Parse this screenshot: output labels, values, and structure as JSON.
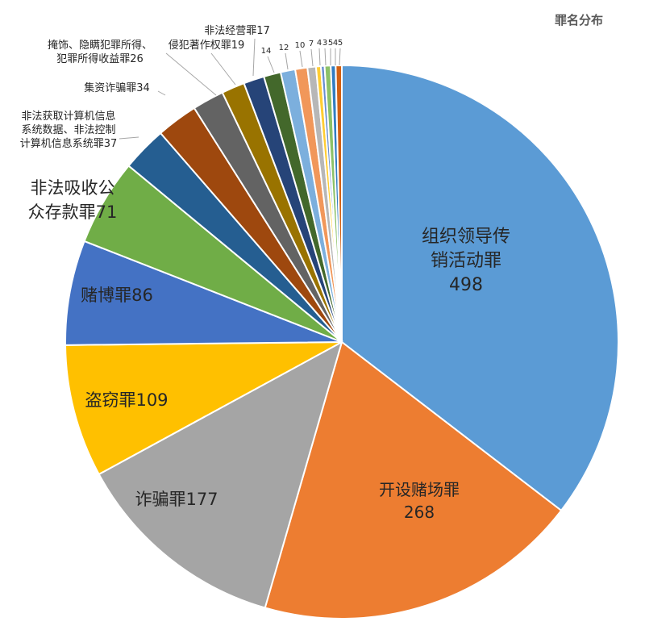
{
  "chart_data": {
    "type": "pie",
    "title": "罪名分布",
    "slices": [
      {
        "name": "组织领导传销活动罪",
        "value": 498,
        "color": "#5B9BD5",
        "label_lines": [
          "组织领导传",
          "销活动罪",
          "498"
        ]
      },
      {
        "name": "开设赌场罪",
        "value": 268,
        "color": "#ED7D31",
        "label_lines": [
          "开设赌场罪",
          "268"
        ]
      },
      {
        "name": "诈骗罪",
        "value": 177,
        "color": "#A5A5A5",
        "label_lines": [
          "诈骗罪177"
        ]
      },
      {
        "name": "盗窃罪",
        "value": 109,
        "color": "#FFC000",
        "label_lines": [
          "盗窃罪109"
        ]
      },
      {
        "name": "赌博罪",
        "value": 86,
        "color": "#4472C4",
        "label_lines": [
          "赌博罪86"
        ]
      },
      {
        "name": "非法吸收公众存款罪",
        "value": 71,
        "color": "#70AD47",
        "label_lines": [
          "非法吸收公",
          "众存款罪71"
        ]
      },
      {
        "name": "非法获取计算机信息系统数据、非法控制计算机信息系统罪",
        "value": 37,
        "color": "#255E91",
        "label_lines": [
          "非法获取计算机信息",
          "系统数据、非法控制",
          "计算机信息系统罪37"
        ]
      },
      {
        "name": "集资诈骗罪",
        "value": 34,
        "color": "#9E480E",
        "label_lines": [
          "集资诈骗罪34"
        ]
      },
      {
        "name": "掩饰、隐瞒犯罪所得、犯罪所得收益罪",
        "value": 26,
        "color": "#636363",
        "label_lines": [
          "掩饰、隐瞒犯罪所得、",
          "犯罪所得收益罪26"
        ]
      },
      {
        "name": "侵犯著作权罪",
        "value": 19,
        "color": "#997300",
        "label_lines": [
          "侵犯著作权罪19"
        ]
      },
      {
        "name": "非法经营罪",
        "value": 17,
        "color": "#264478",
        "label_lines": [
          "非法经营罪17"
        ]
      },
      {
        "name": "",
        "value": 14,
        "color": "#43682B",
        "label_lines": [
          "14"
        ]
      },
      {
        "name": "",
        "value": 12,
        "color": "#7CAFDD",
        "label_lines": [
          "12"
        ]
      },
      {
        "name": "",
        "value": 10,
        "color": "#F1975A",
        "label_lines": [
          "10"
        ]
      },
      {
        "name": "",
        "value": 7,
        "color": "#B7B7B7",
        "label_lines": [
          "7"
        ]
      },
      {
        "name": "",
        "value": 4,
        "color": "#FFCD33",
        "label_lines": [
          "4"
        ]
      },
      {
        "name": "",
        "value": 3,
        "color": "#698ED0",
        "label_lines": [
          "3"
        ]
      },
      {
        "name": "",
        "value": 5,
        "color": "#8CC168",
        "label_lines": [
          "5"
        ]
      },
      {
        "name": "",
        "value": 4,
        "color": "#327DC2",
        "label_lines": [
          "4"
        ]
      },
      {
        "name": "",
        "value": 5,
        "color": "#D26012",
        "label_lines": [
          "5"
        ]
      }
    ]
  }
}
